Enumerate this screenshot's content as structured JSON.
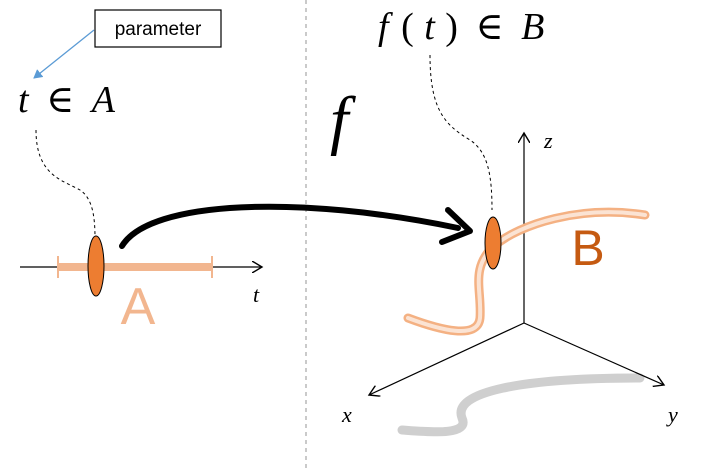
{
  "callout": {
    "label": "parameter"
  },
  "left": {
    "param_var": "t",
    "param_in": "∈",
    "param_set": "A",
    "axis_label": "t",
    "set_label": "A"
  },
  "map": {
    "symbol": "f"
  },
  "right": {
    "image_f": "f",
    "image_open": "(",
    "image_t": "t",
    "image_close": ")",
    "image_in": "∈",
    "image_set": "B",
    "set_label": "B",
    "axis_x": "x",
    "axis_y": "y",
    "axis_z": "z"
  },
  "colors": {
    "segment": "#f2b68f",
    "marker_fill": "#ed7d31",
    "label_A": "#f2b68f",
    "label_B": "#c55a11",
    "callout_arrow": "#5b9bd5",
    "divider": "#a6a6a6",
    "shadow": "#c8c8c8"
  }
}
